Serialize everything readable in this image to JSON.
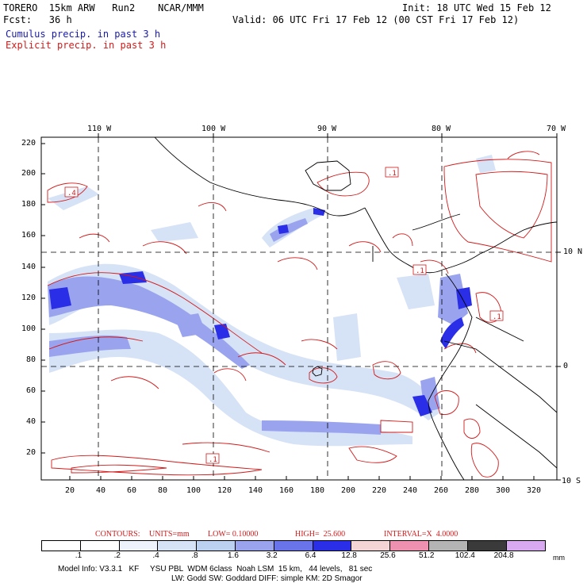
{
  "header": {
    "line1_left": "TORERO  15km ARW   Run2    NCAR/MMM",
    "line1_right": "Init: 18 UTC Wed 15 Feb 12",
    "line2_left": "Fcst:   36 h",
    "line2_right": "Valid: 06 UTC Fri 17 Feb 12 (00 CST Fri 17 Feb 12)",
    "cumulus_label": "Cumulus precip. in past 3 h",
    "explicit_label": "Explicit precip. in past 3 h"
  },
  "map": {
    "top_lon_labels": [
      "110 W",
      "100 W",
      "90 W",
      "80 W",
      "70 W"
    ],
    "right_lat_labels": [
      "10 N",
      "0",
      "10 S"
    ],
    "left_y_ticks": [
      "220",
      "200",
      "180",
      "160",
      "140",
      "120",
      "100",
      "80",
      "60",
      "40",
      "20"
    ],
    "bottom_x_ticks": [
      "20",
      "40",
      "60",
      "80",
      "100",
      "120",
      "140",
      "160",
      "180",
      "200",
      "220",
      "240",
      "260",
      "280",
      "300",
      "320"
    ],
    "contour_labels": [
      ".4",
      ".1",
      ".1",
      ".1",
      ".1"
    ]
  },
  "contour_info": {
    "contours": "CONTOURS:",
    "units": "UNITS=mm",
    "low": "LOW= 0.10000",
    "high": "HIGH=  25.600",
    "interval": "INTERVAL=X  4.0000"
  },
  "legend": {
    "unit": "mm",
    "labels": [
      ".1",
      ".2",
      ".4",
      ".8",
      "1.6",
      "3.2",
      "6.4",
      "12.8",
      "25.6",
      "51.2",
      "102.4",
      "204.8"
    ],
    "colors": [
      "#ffffff",
      "#ffffff",
      "#eef2fb",
      "#d6e2f6",
      "#bcd0f0",
      "#9aa4ee",
      "#6a74ea",
      "#2a2ee6",
      "#f4d4d4",
      "#ee90b0",
      "#b4b4b4",
      "#3a3a3a",
      "#d8a8f0"
    ]
  },
  "footer": {
    "line1": "Model Info: V3.3.1   KF     YSU PBL  WDM 6class  Noah LSM  15 km,   44 levels,   81 sec",
    "line2": "LW: Godd SW: Goddard DIFF: simple KM: 2D Smagor"
  }
}
